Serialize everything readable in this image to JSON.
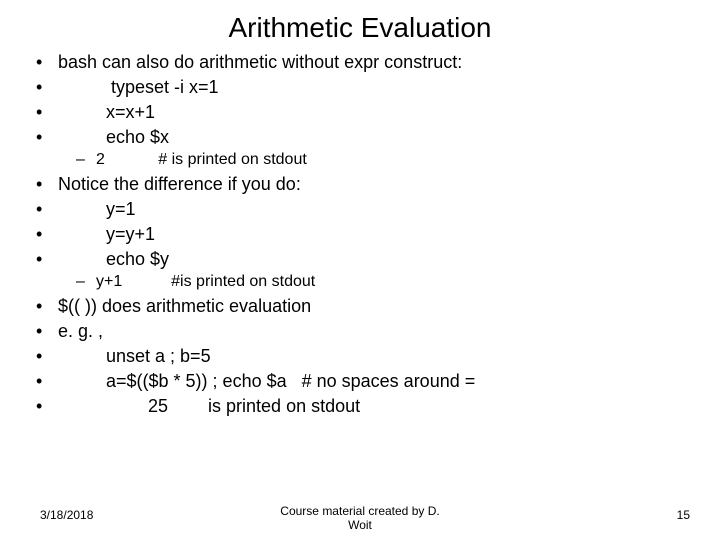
{
  "title": "Arithmetic Evaluation",
  "lines": {
    "l0": "bash can also do arithmetic without expr construct:",
    "l1": " typeset -i x=1",
    "l2": "x=x+1",
    "l3": "echo $x",
    "l4": "2            # is printed on stdout",
    "l5": "Notice the difference if you do:",
    "l6": "y=1",
    "l7": "y=y+1",
    "l8": "echo $y",
    "l9": "y+1           #is printed on stdout",
    "l10": "$(( ))  does arithmetic evaluation",
    "l11": "e. g. ,",
    "l12": "unset a ; b=5",
    "l13": "a=$(($b * 5)) ; echo $a   # no spaces around =",
    "l14a": "25",
    "l14b": "is printed on stdout"
  },
  "footer": {
    "date": "3/18/2018",
    "credit1": "Course material created by D.",
    "credit2": "Woit",
    "page": "15"
  },
  "colors": {
    "bg": "#ffffff",
    "text": "#000000"
  },
  "fonts": {
    "title_size_pt": 28,
    "body_size_pt": 18,
    "sub_size_pt": 16,
    "footer_size_pt": 12,
    "family": "Arial"
  }
}
